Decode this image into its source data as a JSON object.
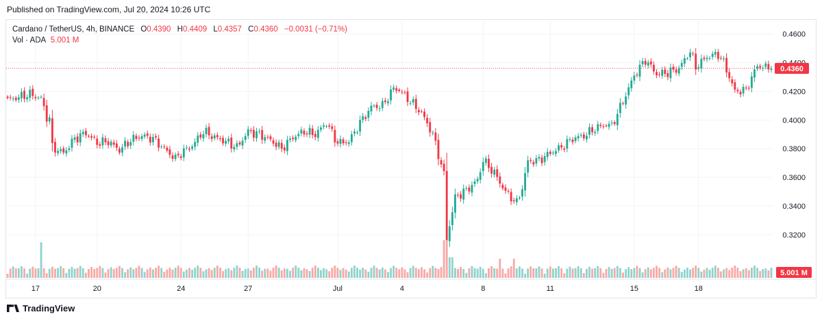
{
  "published": "Published on TradingView.com, Jul 20, 2024 10:26 UTC",
  "legend": {
    "symbol": "Cardano / TetherUS, 4h, BINANCE",
    "open_label": "O",
    "open": "0.4390",
    "high_label": "H",
    "high": "0.4409",
    "low_label": "L",
    "low": "0.4357",
    "close_label": "C",
    "close": "0.4360",
    "change": "−0.0031 (−0.71%)",
    "vol_label": "Vol · ADA",
    "vol_value": "5.001 M"
  },
  "footer": {
    "brand": "TradingView"
  },
  "colors": {
    "up": "#22ab94",
    "down": "#f23645",
    "up_vol": "#92d2cc",
    "down_vol": "#f7a9a7"
  },
  "chart_data": {
    "type": "candlestick",
    "y_ticks": [
      "0.4600",
      "0.4400",
      "0.4200",
      "0.4000",
      "0.3800",
      "0.3600",
      "0.3400",
      "0.3200"
    ],
    "ylim": [
      0.308,
      0.467
    ],
    "x_ticks": [
      "17",
      "20",
      "24",
      "27",
      "Jul",
      "4",
      "8",
      "11",
      "15",
      "18"
    ],
    "last_price_label": "0.4360",
    "last_price": 0.436,
    "volume_label": "5.001 M",
    "grid": true,
    "anchors": [
      [
        0,
        0.414
      ],
      [
        8,
        0.418
      ],
      [
        12,
        0.415
      ],
      [
        14,
        0.402
      ],
      [
        15,
        0.401
      ],
      [
        16,
        0.381
      ],
      [
        20,
        0.377
      ],
      [
        24,
        0.387
      ],
      [
        28,
        0.391
      ],
      [
        32,
        0.384
      ],
      [
        36,
        0.385
      ],
      [
        40,
        0.379
      ],
      [
        44,
        0.386
      ],
      [
        48,
        0.389
      ],
      [
        52,
        0.387
      ],
      [
        56,
        0.38
      ],
      [
        60,
        0.373
      ],
      [
        62,
        0.377
      ],
      [
        66,
        0.382
      ],
      [
        70,
        0.392
      ],
      [
        74,
        0.388
      ],
      [
        78,
        0.385
      ],
      [
        82,
        0.381
      ],
      [
        86,
        0.392
      ],
      [
        90,
        0.39
      ],
      [
        94,
        0.386
      ],
      [
        98,
        0.38
      ],
      [
        102,
        0.388
      ],
      [
        106,
        0.392
      ],
      [
        110,
        0.39
      ],
      [
        114,
        0.398
      ],
      [
        118,
        0.384
      ],
      [
        122,
        0.385
      ],
      [
        126,
        0.398
      ],
      [
        130,
        0.409
      ],
      [
        134,
        0.41
      ],
      [
        138,
        0.422
      ],
      [
        140,
        0.421
      ],
      [
        144,
        0.413
      ],
      [
        148,
        0.405
      ],
      [
        152,
        0.39
      ],
      [
        156,
        0.362
      ],
      [
        157,
        0.317
      ],
      [
        160,
        0.346
      ],
      [
        164,
        0.351
      ],
      [
        168,
        0.358
      ],
      [
        170,
        0.372
      ],
      [
        174,
        0.363
      ],
      [
        178,
        0.35
      ],
      [
        182,
        0.342
      ],
      [
        184,
        0.353
      ],
      [
        186,
        0.371
      ],
      [
        190,
        0.372
      ],
      [
        194,
        0.377
      ],
      [
        198,
        0.381
      ],
      [
        202,
        0.387
      ],
      [
        206,
        0.389
      ],
      [
        210,
        0.394
      ],
      [
        214,
        0.397
      ],
      [
        216,
        0.396
      ],
      [
        220,
        0.413
      ],
      [
        224,
        0.431
      ],
      [
        228,
        0.442
      ],
      [
        232,
        0.432
      ],
      [
        236,
        0.433
      ],
      [
        240,
        0.436
      ],
      [
        244,
        0.448
      ],
      [
        246,
        0.437
      ],
      [
        250,
        0.444
      ],
      [
        254,
        0.446
      ],
      [
        256,
        0.44
      ],
      [
        260,
        0.42
      ],
      [
        264,
        0.421
      ],
      [
        268,
        0.438
      ],
      [
        270,
        0.437
      ],
      [
        273,
        0.436
      ]
    ],
    "visible_bar_count": 274
  }
}
